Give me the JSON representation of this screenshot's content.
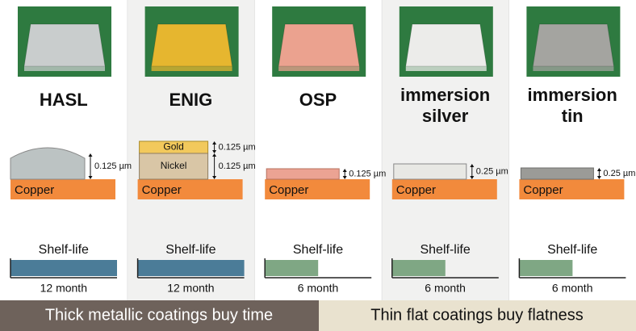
{
  "columns": [
    {
      "name_lines": [
        "HASL"
      ],
      "coating": [
        {
          "thickness": "0.125 µm"
        }
      ],
      "base": "Copper",
      "shelf_life_title": "Shelf-life",
      "shelf_life_months": 12,
      "shelf_life_label": "12 month",
      "bar_color": "#4b7c98"
    },
    {
      "name_lines": [
        "ENIG"
      ],
      "coating": [
        {
          "name": "Gold",
          "thickness": "0.125 µm"
        },
        {
          "name": "Nickel",
          "thickness": "0.125 µm"
        }
      ],
      "base": "Copper",
      "shelf_life_title": "Shelf-life",
      "shelf_life_months": 12,
      "shelf_life_label": "12 month",
      "bar_color": "#4b7c98"
    },
    {
      "name_lines": [
        "OSP"
      ],
      "coating": [
        {
          "thickness": "0.125 µm"
        }
      ],
      "base": "Copper",
      "shelf_life_title": "Shelf-life",
      "shelf_life_months": 6,
      "shelf_life_label": "6 month",
      "bar_color": "#7fa784"
    },
    {
      "name_lines": [
        "immersion",
        "silver"
      ],
      "coating": [
        {
          "thickness": "0.25 µm"
        }
      ],
      "base": "Copper",
      "shelf_life_title": "Shelf-life",
      "shelf_life_months": 6,
      "shelf_life_label": "6 month",
      "bar_color": "#7fa784"
    },
    {
      "name_lines": [
        "immersion",
        "tin"
      ],
      "coating": [
        {
          "thickness": "0.25 µm"
        }
      ],
      "base": "Copper",
      "shelf_life_title": "Shelf-life",
      "shelf_life_months": 6,
      "shelf_life_label": "6 month",
      "bar_color": "#7fa784"
    }
  ],
  "banner": {
    "left": "Thick metallic coatings buy time",
    "right": "Thin flat coatings buy flatness"
  }
}
